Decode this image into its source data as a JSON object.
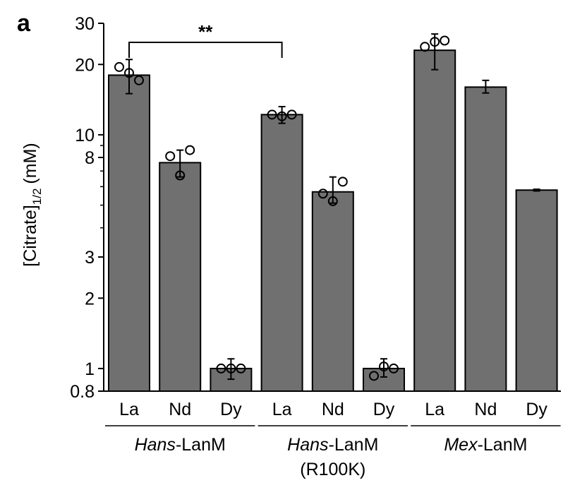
{
  "panel_label": "a",
  "chart_data": {
    "type": "bar",
    "yscale": "log",
    "ylabel": "[Citrate]",
    "ylabel_subscript": "1/2",
    "ylabel_unit": "(mM)",
    "ylim": [
      0.8,
      30
    ],
    "yticks_major": [
      0.8,
      1,
      2,
      3,
      8,
      10,
      20,
      30
    ],
    "yticks_minor": [
      4,
      5,
      6,
      7,
      9
    ],
    "bar_color": "#707070",
    "groups": [
      {
        "label_italic": "Hans",
        "label_rest": "-LanM",
        "label_line2": "",
        "categories": [
          "La",
          "Nd",
          "Dy"
        ]
      },
      {
        "label_italic": "Hans",
        "label_rest": "-LanM",
        "label_line2": "(R100K)",
        "categories": [
          "La",
          "Nd",
          "Dy"
        ]
      },
      {
        "label_italic": "Mex",
        "label_rest": "-LanM",
        "label_line2": "",
        "categories": [
          "La",
          "Nd",
          "Dy"
        ]
      }
    ],
    "bars": [
      {
        "category": "La",
        "group": 0,
        "value": 18.0,
        "err_low": 15.0,
        "err_high": 21.0,
        "points": [
          19.5,
          18.4,
          17.1
        ]
      },
      {
        "category": "Nd",
        "group": 0,
        "value": 7.6,
        "err_low": 6.6,
        "err_high": 8.6,
        "points": [
          8.1,
          6.7,
          8.6
        ]
      },
      {
        "category": "Dy",
        "group": 0,
        "value": 1.0,
        "err_low": 0.9,
        "err_high": 1.1,
        "points": [
          1.0,
          1.0,
          1.0
        ]
      },
      {
        "category": "La",
        "group": 1,
        "value": 12.2,
        "err_low": 11.2,
        "err_high": 13.2,
        "points": [
          12.2,
          12.0,
          12.2
        ]
      },
      {
        "category": "Nd",
        "group": 1,
        "value": 5.7,
        "err_low": 5.1,
        "err_high": 6.6,
        "points": [
          5.6,
          5.2,
          6.3
        ]
      },
      {
        "category": "Dy",
        "group": 1,
        "value": 1.0,
        "err_low": 0.92,
        "err_high": 1.1,
        "points": [
          0.93,
          1.02,
          1.0
        ]
      },
      {
        "category": "La",
        "group": 2,
        "value": 23.0,
        "err_low": 19.0,
        "err_high": 27.0,
        "points": [
          23.8,
          25.0,
          25.3
        ]
      },
      {
        "category": "Nd",
        "group": 2,
        "value": 16.0,
        "err_low": 15.1,
        "err_high": 17.1,
        "points": []
      },
      {
        "category": "Dy",
        "group": 2,
        "value": 5.8,
        "err_low": 5.75,
        "err_high": 5.85,
        "points": []
      }
    ],
    "significance": [
      {
        "from_bar": 0,
        "to_bar": 3,
        "label": "**"
      }
    ]
  }
}
